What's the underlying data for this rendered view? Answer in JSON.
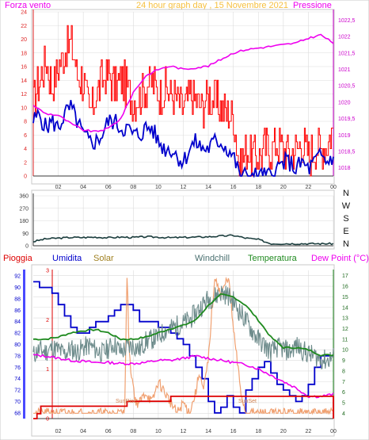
{
  "header": {
    "left": "Forza vento",
    "center": "24 hour graph day , 15 Novembre 2021",
    "right": "Pressione"
  },
  "colors": {
    "frame": "#c8c8c8",
    "grid": "#dcdcdc",
    "axis": "#3a3a3a",
    "red": "#ff0000",
    "blue": "#0000cc",
    "magenta": "#ee00ee",
    "darkgreen": "#1b3d3d",
    "green": "#1f8a1f",
    "windchill": "#6e8c8c",
    "solar": "#f0a070",
    "rain": "#dd0000",
    "ybar": "#4a4aff"
  },
  "legend": {
    "pioggia": "Pioggia",
    "umidita": "Umidita",
    "solar": "Solar",
    "windchill": "Windchill",
    "temperatura": "Temperatura",
    "dewpoint": "Dew Point (°C)"
  },
  "annotations": {
    "sunrise": "SunRise",
    "sunset": "SunSet"
  },
  "chart_data": [
    {
      "type": "line",
      "x_ticks": [
        "02",
        "04",
        "06",
        "08",
        "10",
        "12",
        "14",
        "16",
        "18",
        "20",
        "22",
        "00"
      ],
      "y_left_ticks": [
        "0",
        "2",
        "4",
        "6",
        "8",
        "10",
        "12",
        "14",
        "16",
        "18",
        "20",
        "22",
        "24"
      ],
      "y_right_ticks": [
        "1018",
        "1018,5",
        "1019",
        "1019,5",
        "1020",
        "1020,5",
        "1021",
        "1021,5",
        "1022",
        "1022,5"
      ],
      "ylim_left": [
        0,
        24
      ],
      "ylim_right": [
        1017.75,
        1022.75
      ],
      "x_range": [
        0,
        24
      ],
      "series": [
        {
          "color": "red",
          "kind": "gust",
          "x": [
            0,
            0.5,
            1,
            1.5,
            2,
            2.5,
            3,
            3.5,
            4,
            4.5,
            5,
            5.5,
            6,
            6.5,
            7,
            7.5,
            8,
            8.5,
            9,
            9.5,
            10,
            10.5,
            11,
            11.5,
            12,
            12.5,
            13,
            13.5,
            14,
            14.5,
            15,
            15.5,
            16,
            16.5,
            17,
            17.5,
            18,
            18.5,
            19,
            19.5,
            20,
            20.5,
            21,
            21.5,
            22,
            22.5,
            23,
            23.5,
            24
          ],
          "values": [
            11,
            14,
            17,
            13,
            16,
            18,
            20,
            15,
            14,
            9,
            12,
            14,
            15,
            13,
            14,
            13,
            11,
            12,
            13,
            14,
            12,
            13,
            12,
            11,
            10,
            12,
            11,
            10,
            12,
            11,
            10,
            9,
            9,
            1,
            4,
            3,
            3,
            4,
            4,
            5,
            4,
            3,
            4,
            5,
            3,
            4,
            4,
            5,
            7
          ]
        },
        {
          "color": "blue",
          "kind": "speed",
          "x": [
            0,
            0.5,
            1,
            1.5,
            2,
            2.5,
            3,
            3.5,
            4,
            4.5,
            5,
            5.5,
            6,
            6.5,
            7,
            7.5,
            8,
            8.5,
            9,
            9.5,
            10,
            10.5,
            11,
            11.5,
            12,
            12.5,
            13,
            13.5,
            14,
            14.5,
            15,
            15.5,
            16,
            16.5,
            17,
            17.5,
            18,
            18.5,
            19,
            19.5,
            20,
            20.5,
            21,
            21.5,
            22,
            22.5,
            23,
            23.5,
            24
          ],
          "values": [
            8,
            9,
            7,
            8,
            7,
            9,
            10,
            8,
            6,
            5,
            5,
            6,
            8,
            8,
            7,
            7,
            6,
            6,
            7,
            7,
            5,
            4,
            4,
            3,
            2,
            4,
            5,
            4,
            4,
            5,
            5,
            4,
            3,
            0,
            0,
            0,
            0,
            0,
            0,
            1,
            2,
            2,
            1,
            2,
            1,
            2,
            3,
            2,
            3
          ]
        },
        {
          "color": "magenta",
          "kind": "pressure",
          "axis": "right",
          "x": [
            0,
            1,
            2,
            3,
            4,
            5,
            6,
            7,
            8,
            9,
            10,
            11,
            12,
            13,
            14,
            15,
            16,
            17,
            18,
            19,
            20,
            21,
            22,
            23,
            24
          ],
          "values": [
            1019.9,
            1019.65,
            1019.6,
            1019.35,
            1019.15,
            1019.1,
            1019.2,
            1019.5,
            1020.3,
            1020.8,
            1021.0,
            1021.1,
            1021.0,
            1021.05,
            1021.1,
            1021.3,
            1021.5,
            1021.6,
            1021.65,
            1021.7,
            1021.75,
            1021.8,
            1021.95,
            1022.05,
            1021.8
          ]
        }
      ]
    },
    {
      "type": "line",
      "x_ticks": [],
      "y_left_ticks": [
        "0",
        "90",
        "180",
        "270",
        "360"
      ],
      "y_right_ticks": [
        "N",
        "W",
        "S",
        "E",
        "N"
      ],
      "ylim_left": [
        0,
        360
      ],
      "x_range": [
        0,
        24
      ],
      "series": [
        {
          "color": "darkgreen",
          "kind": "direction",
          "x": [
            0,
            1,
            2,
            3,
            4,
            5,
            6,
            7,
            8,
            9,
            10,
            11,
            12,
            13,
            14,
            15,
            16,
            17,
            18,
            19,
            20,
            21,
            22,
            23,
            24
          ],
          "values": [
            30,
            50,
            55,
            60,
            60,
            62,
            58,
            62,
            60,
            65,
            62,
            58,
            60,
            62,
            65,
            70,
            75,
            55,
            45,
            15,
            15,
            15,
            15,
            15,
            15
          ]
        }
      ]
    },
    {
      "type": "line",
      "x_ticks": [
        "02",
        "04",
        "06",
        "08",
        "10",
        "12",
        "14",
        "16",
        "18",
        "20",
        "22",
        "00"
      ],
      "y_left_ticks": [
        "68",
        "70",
        "72",
        "74",
        "76",
        "78",
        "80",
        "82",
        "84",
        "86",
        "88",
        "90",
        "92"
      ],
      "y_left_ticks2": [
        "0",
        "1",
        "2",
        "3"
      ],
      "y_right_ticks": [
        "4",
        "5",
        "6",
        "7",
        "8",
        "9",
        "10",
        "11",
        "12",
        "13",
        "14",
        "15",
        "16",
        "17"
      ],
      "ylim_left": [
        67,
        93
      ],
      "ylim_right": [
        3.5,
        17.5
      ],
      "x_range": [
        0,
        24
      ],
      "series": [
        {
          "color": "ybar",
          "kind": "humidity",
          "axis": "left",
          "x": [
            0,
            0.5,
            1,
            1.5,
            2,
            2.5,
            3,
            3.5,
            4,
            4.5,
            5,
            5.5,
            6,
            6.5,
            7,
            7.5,
            8,
            8.5,
            9,
            9.5,
            10,
            10.5,
            11,
            11.5,
            12,
            12.5,
            13,
            13.5,
            14,
            14.5,
            15,
            15.5,
            16,
            16.5,
            17,
            17.5,
            18,
            18.5,
            19,
            19.5,
            20,
            20.5,
            21,
            21.5,
            22,
            22.5,
            23,
            23.5,
            24
          ],
          "values": [
            91,
            90,
            90,
            89,
            87,
            85,
            83,
            82,
            82,
            83,
            84,
            84,
            85,
            86,
            87,
            87,
            86,
            84,
            84,
            84,
            83,
            83,
            82,
            81,
            80,
            78,
            76,
            74,
            70,
            68,
            69,
            71,
            69,
            68,
            72,
            74,
            76,
            77,
            75,
            73,
            72,
            71,
            70,
            71,
            73,
            76,
            78,
            78,
            78
          ]
        },
        {
          "color": "solar",
          "kind": "solar",
          "axis": "right",
          "x": [
            0,
            7.3,
            7.5,
            7.7,
            8.2,
            8.5,
            9,
            9.5,
            10,
            10.5,
            11,
            11.5,
            12,
            12.5,
            13,
            13.3,
            13.6,
            14,
            14.3,
            14.6,
            15,
            15.3,
            15.6,
            16,
            16.3,
            16.6,
            17,
            24
          ],
          "values": [
            4,
            4,
            17,
            9,
            5,
            5,
            6,
            5,
            7,
            6,
            5,
            4,
            5,
            4,
            6,
            8,
            6,
            9,
            14,
            17,
            15,
            16,
            17,
            12,
            9,
            6,
            4,
            4
          ]
        },
        {
          "color": "windchill",
          "kind": "windchill",
          "axis": "right",
          "x": [
            0,
            0.5,
            1,
            1.5,
            2,
            2.5,
            3,
            3.5,
            4,
            4.5,
            5,
            5.5,
            6,
            6.5,
            7,
            7.5,
            8,
            8.5,
            9,
            9.5,
            10,
            10.5,
            11,
            11.5,
            12,
            12.5,
            13,
            13.5,
            14,
            14.5,
            15,
            15.5,
            16,
            16.5,
            17,
            17.5,
            18,
            18.5,
            19,
            19.5,
            20,
            20.5,
            21,
            21.5,
            22,
            22.5,
            23,
            23.5,
            24
          ],
          "values": [
            9.5,
            10,
            9.8,
            10.2,
            10,
            9.6,
            10.1,
            9.8,
            10.2,
            10.4,
            10,
            9.7,
            10.1,
            10.6,
            9.8,
            10.2,
            10.4,
            10,
            10.8,
            11,
            11.2,
            11.8,
            12,
            12.3,
            12.5,
            12.8,
            13.5,
            14.2,
            14.8,
            15,
            15.4,
            15.2,
            14.6,
            13.6,
            12.8,
            11.8,
            11,
            10.4,
            9.8,
            10.2,
            10.1,
            9.8,
            10.4,
            10,
            9.6,
            9.4,
            9.1,
            9,
            9.4
          ]
        },
        {
          "color": "green",
          "kind": "temperature",
          "axis": "right",
          "x": [
            0,
            1,
            2,
            3,
            4,
            5,
            6,
            7,
            8,
            9,
            10,
            11,
            12,
            13,
            14,
            15,
            16,
            17,
            18,
            19,
            20,
            21,
            22,
            23,
            24
          ],
          "values": [
            11,
            11,
            11.2,
            11.6,
            11.8,
            11.9,
            11.6,
            11,
            11,
            11.2,
            11.6,
            12,
            12.3,
            12.8,
            14.2,
            15.2,
            15,
            14.2,
            12.8,
            11.2,
            10.2,
            10.2,
            10,
            9.5,
            9.5
          ]
        },
        {
          "color": "magenta",
          "kind": "dewpoint",
          "axis": "right",
          "x": [
            0,
            1,
            2,
            3,
            4,
            5,
            6,
            7,
            8,
            9,
            10,
            11,
            12,
            13,
            14,
            15,
            16,
            17,
            18,
            19,
            20,
            21,
            22,
            23,
            24
          ],
          "values": [
            9.5,
            9.4,
            9.2,
            9,
            8.9,
            8.8,
            8.8,
            8.7,
            8.7,
            8.8,
            9,
            9,
            9.2,
            9.4,
            9.2,
            9,
            8.8,
            8.6,
            8.2,
            7.6,
            7,
            6.4,
            5.6,
            5.6,
            5.8
          ]
        },
        {
          "color": "rain",
          "kind": "rain",
          "axis": "left2",
          "x": [
            0,
            0.3,
            0.6,
            1,
            2,
            3,
            4,
            5,
            6,
            7,
            7.5,
            8,
            9,
            10,
            11,
            12,
            13,
            14,
            15,
            16,
            17,
            18,
            19,
            20,
            21,
            22,
            23,
            24
          ],
          "values": [
            0,
            0.1,
            0.25,
            0.25,
            0.25,
            0.25,
            0.25,
            0.25,
            0.25,
            0.25,
            0.35,
            0.35,
            0.35,
            0.35,
            0.45,
            0.45,
            0.45,
            0.45,
            0.45,
            0.45,
            0.45,
            0.45,
            0.45,
            0.45,
            0.45,
            0.45,
            0.45,
            0
          ]
        }
      ]
    }
  ]
}
